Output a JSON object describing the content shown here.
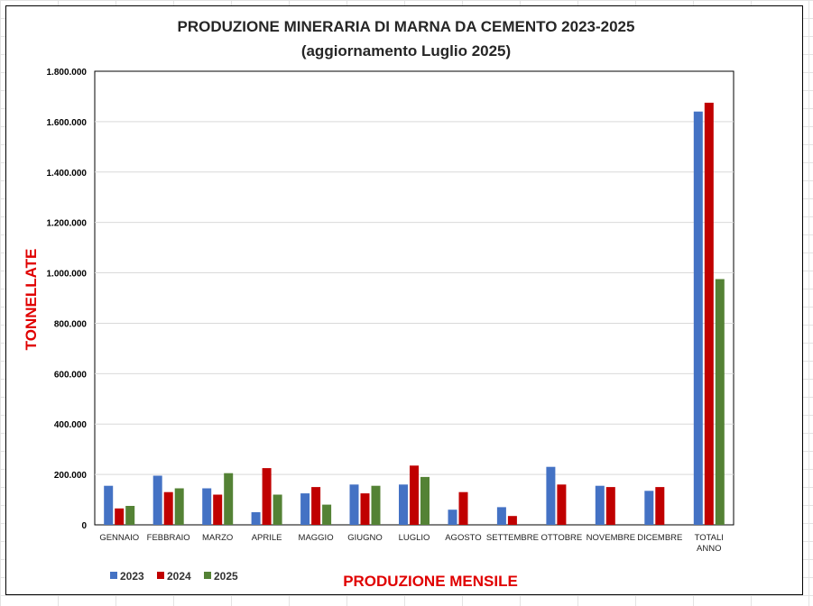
{
  "chart_data": {
    "type": "bar",
    "title": "PRODUZIONE MINERARIA DI MARNA DA CEMENTO 2023-2025",
    "subtitle": "(aggiornamento  Luglio 2025)",
    "xlabel": "PRODUZIONE MENSILE",
    "ylabel": "TONNELLATE",
    "ylim": [
      0,
      1800000
    ],
    "yticks": [
      0,
      200000,
      400000,
      600000,
      800000,
      1000000,
      1200000,
      1400000,
      1600000,
      1800000
    ],
    "ytick_labels": [
      "0",
      "200.000",
      "400.000",
      "600.000",
      "800.000",
      "1.000.000",
      "1.200.000",
      "1.400.000",
      "1.600.000",
      "1.800.000"
    ],
    "grid": "horizontal",
    "legend_position": "bottom-left",
    "categories": [
      [
        "GENNAIO"
      ],
      [
        "FEBBRAIO"
      ],
      [
        "MARZO"
      ],
      [
        "APRILE"
      ],
      [
        "MAGGIO"
      ],
      [
        "GIUGNO"
      ],
      [
        "LUGLIO"
      ],
      [
        "AGOSTO"
      ],
      [
        "SETTEMBRE"
      ],
      [
        "OTTOBRE"
      ],
      [
        "NOVEMBRE"
      ],
      [
        "DICEMBRE"
      ],
      [
        "TOTALI",
        "ANNO"
      ]
    ],
    "series": [
      {
        "name": "2023",
        "color": "#4472c4",
        "values": [
          155000,
          195000,
          145000,
          50000,
          125000,
          160000,
          160000,
          60000,
          70000,
          230000,
          155000,
          135000,
          1640000
        ]
      },
      {
        "name": "2024",
        "color": "#c00000",
        "values": [
          65000,
          130000,
          120000,
          225000,
          150000,
          125000,
          235000,
          130000,
          35000,
          160000,
          150000,
          150000,
          1675000
        ]
      },
      {
        "name": "2025",
        "color": "#548235",
        "values": [
          75000,
          145000,
          205000,
          120000,
          80000,
          155000,
          190000,
          null,
          null,
          null,
          null,
          null,
          975000
        ]
      }
    ]
  }
}
